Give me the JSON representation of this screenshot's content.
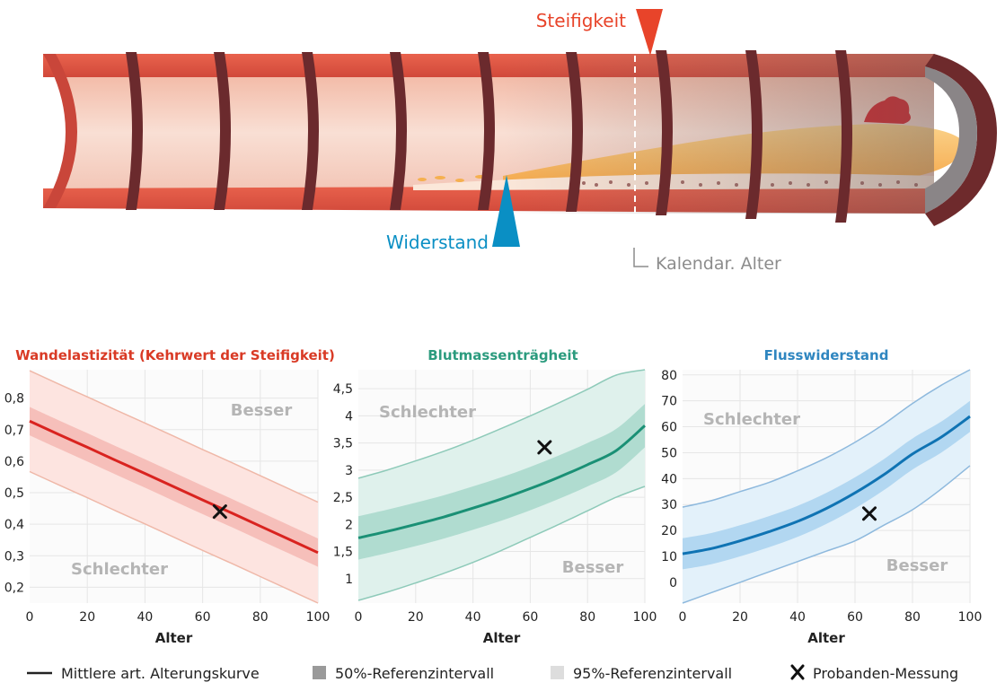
{
  "illustration": {
    "label_stiffness": "Steifigkeit",
    "label_resistance": "Widerstand",
    "label_calendar_age": "Kalendar. Alter",
    "colors": {
      "stiffness": "#e8442a",
      "resistance": "#0a8fc4",
      "age": "#8c8c8c"
    }
  },
  "chart_data": [
    {
      "type": "line",
      "title": "Wandelastizität (Kehrwert der Steifigkeit)",
      "title_color": "#d93a25",
      "xlabel": "Alter",
      "x_ticks": [
        0,
        20,
        40,
        60,
        80,
        100
      ],
      "xlim": [
        0,
        100
      ],
      "ylim": [
        0.15,
        0.89
      ],
      "y_ticks": [
        0.2,
        0.3,
        0.4,
        0.5,
        0.6,
        0.7,
        0.8
      ],
      "y_tick_labels": [
        "0,2",
        "0,3",
        "0,4",
        "0,5",
        "0,6",
        "0,7",
        "0,8"
      ],
      "x": [
        0,
        10,
        20,
        30,
        40,
        50,
        60,
        70,
        80,
        90,
        100
      ],
      "mean": [
        0.727,
        0.685,
        0.644,
        0.602,
        0.561,
        0.519,
        0.477,
        0.436,
        0.394,
        0.352,
        0.31
      ],
      "ci50_lower": [
        0.682,
        0.64,
        0.599,
        0.557,
        0.516,
        0.474,
        0.432,
        0.391,
        0.349,
        0.307,
        0.265
      ],
      "ci50_upper": [
        0.772,
        0.73,
        0.689,
        0.647,
        0.606,
        0.564,
        0.522,
        0.481,
        0.439,
        0.397,
        0.355
      ],
      "ci95_lower": [
        0.567,
        0.525,
        0.484,
        0.442,
        0.401,
        0.359,
        0.317,
        0.276,
        0.234,
        0.192,
        0.15
      ],
      "ci95_upper": [
        0.887,
        0.845,
        0.804,
        0.762,
        0.721,
        0.679,
        0.637,
        0.596,
        0.554,
        0.512,
        0.47
      ],
      "measurement": {
        "x": 66,
        "y": 0.44
      },
      "annotation_top": "Besser",
      "annotation_bottom": "Schlechter",
      "line_color": "#d9231f",
      "band50_color": "#f5b9b3",
      "band95_color": "#fde4e0",
      "band_edge_color": "#efb8a8"
    },
    {
      "type": "line",
      "title": "Blutmassenträgheit",
      "title_color": "#2b9b7e",
      "xlabel": "Alter",
      "x_ticks": [
        0,
        20,
        40,
        60,
        80,
        100
      ],
      "xlim": [
        0,
        100
      ],
      "ylim": [
        0.55,
        4.85
      ],
      "y_ticks": [
        1,
        1.5,
        2,
        2.5,
        3,
        3.5,
        4,
        4.5
      ],
      "y_tick_labels": [
        "1",
        "1,5",
        "2",
        "2,5",
        "3",
        "3,5",
        "4",
        "4,5"
      ],
      "x": [
        0,
        10,
        20,
        30,
        40,
        50,
        60,
        70,
        80,
        90,
        100
      ],
      "mean": [
        1.75,
        1.87,
        2.0,
        2.14,
        2.3,
        2.47,
        2.66,
        2.87,
        3.1,
        3.36,
        3.82
      ],
      "ci50_lower": [
        1.35,
        1.47,
        1.6,
        1.74,
        1.9,
        2.07,
        2.26,
        2.47,
        2.7,
        2.96,
        3.42
      ],
      "ci50_upper": [
        2.15,
        2.27,
        2.4,
        2.54,
        2.7,
        2.87,
        3.06,
        3.27,
        3.5,
        3.76,
        4.22
      ],
      "ci95_lower": [
        0.6,
        0.75,
        0.92,
        1.1,
        1.3,
        1.52,
        1.76,
        2.0,
        2.25,
        2.5,
        2.7
      ],
      "ci95_upper": [
        2.85,
        3.0,
        3.17,
        3.35,
        3.55,
        3.77,
        4.0,
        4.24,
        4.49,
        4.75,
        4.85
      ],
      "measurement": {
        "x": 65,
        "y": 3.42
      },
      "annotation_top": "Schlechter",
      "annotation_bottom": "Besser",
      "line_color": "#1a9075",
      "band50_color": "#a8d8cb",
      "band95_color": "#dff1ec",
      "band_edge_color": "#8ecab9"
    },
    {
      "type": "line",
      "title": "Flusswiderstand",
      "title_color": "#2f86c0",
      "xlabel": "Alter",
      "x_ticks": [
        0,
        20,
        40,
        60,
        80,
        100
      ],
      "xlim": [
        0,
        100
      ],
      "ylim": [
        -8,
        82
      ],
      "y_ticks": [
        0,
        10,
        20,
        30,
        40,
        50,
        60,
        70,
        80
      ],
      "y_tick_labels": [
        "0",
        "10",
        "20",
        "30",
        "40",
        "50",
        "60",
        "70",
        "80"
      ],
      "x": [
        0,
        10,
        20,
        30,
        40,
        50,
        60,
        70,
        80,
        90,
        100
      ],
      "mean": [
        11,
        13,
        16,
        19.5,
        23.5,
        28.5,
        34.5,
        41.5,
        49.5,
        56,
        64
      ],
      "ci50_lower": [
        5,
        7,
        10,
        13.5,
        17.5,
        22.5,
        28.5,
        35.5,
        43.5,
        50,
        58
      ],
      "ci50_upper": [
        17,
        19,
        22,
        25.5,
        29.5,
        34.5,
        40.5,
        47.5,
        55.5,
        62,
        70
      ],
      "ci95_lower": [
        -8,
        -4,
        0,
        4,
        8,
        12,
        16,
        22,
        28,
        36,
        45
      ],
      "ci95_upper": [
        29,
        31.5,
        35,
        38.5,
        43,
        48,
        54,
        61,
        69,
        76,
        82
      ],
      "measurement": {
        "x": 65,
        "y": 26.5
      },
      "annotation_top": "Schlechter",
      "annotation_bottom": "Besser",
      "line_color": "#0f73b3",
      "band50_color": "#a9d2ee",
      "band95_color": "#e3f1fa",
      "band_edge_color": "#8eb9dd"
    }
  ],
  "legend": {
    "mean_curve": "Mittlere art. Alterungskurve",
    "ci50": "50%-Referenzintervall",
    "ci95": "95%-Referenzintervall",
    "measurement": "Probanden-Messung"
  }
}
